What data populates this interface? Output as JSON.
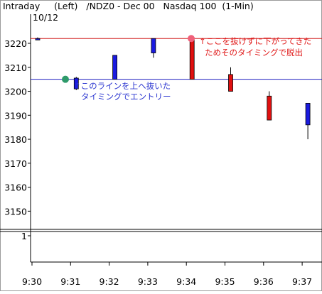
{
  "header": {
    "title": "Intraday     (Left)   /NDZ0 - Dec 00   Nasdaq 100  (1-Min)",
    "date": "10/12"
  },
  "annotations": {
    "entry_line1": "↑このラインを上へ抜いた",
    "entry_line2": "タイミングでエントリー",
    "exit_line1": "↑ここを抜けずに下がってきた",
    "exit_line2": "ためそのタイミングで脱出"
  },
  "colors": {
    "up": "#1a1ae0",
    "down": "#e01010",
    "entry_line": "#2020c0",
    "exit_line": "#d01818",
    "entry_text": "#2a35d0",
    "exit_text": "#e01818",
    "entry_marker": "#2e9a6a",
    "exit_marker": "#f0607a"
  },
  "chart_data": {
    "type": "candlestick",
    "categories": [
      "9:30",
      "9:31",
      "9:32",
      "9:33",
      "9:34",
      "9:35",
      "9:36",
      "9:37"
    ],
    "series": [
      {
        "values": [
          {
            "t": "9:30",
            "o": 3222,
            "h": 3222.5,
            "l": 3221.5,
            "c": 3222
          },
          {
            "t": "9:31",
            "o": 3201,
            "h": 3206,
            "l": 3200.5,
            "c": 3205.5
          },
          {
            "t": "9:32",
            "o": 3205,
            "h": 3215,
            "l": 3205,
            "c": 3215
          },
          {
            "t": "9:33",
            "o": 3216,
            "h": 3222,
            "l": 3214,
            "c": 3222
          },
          {
            "t": "9:34",
            "o": 3222,
            "h": 3222,
            "l": 3205,
            "c": 3205
          },
          {
            "t": "9:35",
            "o": 3207,
            "h": 3210,
            "l": 3200,
            "c": 3200
          },
          {
            "t": "9:36",
            "o": 3198,
            "h": 3200,
            "l": 3188,
            "c": 3188
          },
          {
            "t": "9:37",
            "o": 3186,
            "h": 3195,
            "l": 3180,
            "c": 3195
          }
        ]
      }
    ],
    "reference_lines": [
      {
        "value": 3205
      },
      {
        "value": 3222
      }
    ],
    "ylim": [
      3143,
      3228
    ],
    "yticks": [
      3150,
      3160,
      3170,
      3180,
      3190,
      3200,
      3210,
      3220
    ],
    "lower_panel_tick": "1",
    "grid": false
  }
}
